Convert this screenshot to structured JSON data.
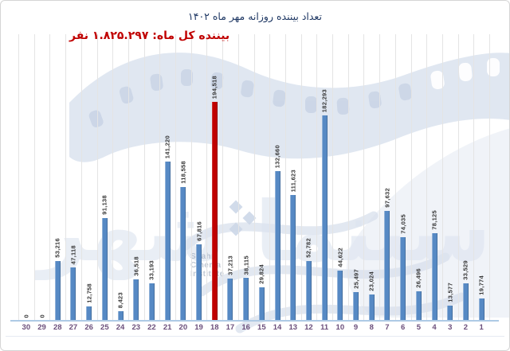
{
  "title": "تعداد بیننده روزانه مهر ماه ۱۴۰۲",
  "subtitle": "بیننده کل ماه: ۱.۸۲۵.۲۹۷ نفر",
  "total_viewers_display": "۱.۸۲۵.۲۹۷",
  "watermark": {
    "line1": "Shahr",
    "line2": "Cinema",
    "line3": "Institute",
    "calligraphy": "سینما شهر"
  },
  "colors": {
    "bar": "#5689c4",
    "highlight": "#c00000",
    "title": "#1f3864",
    "subtitle": "#c00000",
    "x_labels": "#6b4f7b",
    "gridline": "#e4e4e4",
    "axis_line": "#aecae5",
    "watermark": "#dde4f0"
  },
  "chart_data": {
    "type": "bar",
    "title": "تعداد بیننده روزانه مهر ماه ۱۴۰۲",
    "subtitle": "بیننده کل ماه: ۱.۸۲۵.۲۹۷ نفر",
    "xlabel": "",
    "ylabel": "",
    "x_axis_note": "day of month, shown right-to-left (30 at left, 1 at right)",
    "grid": "vertical",
    "legend": "none",
    "value_labels": "rotated-vertical-above-bars",
    "ylim": [
      0,
      200000
    ],
    "highlight_category": "18",
    "highlight_value": 194518,
    "total": 1825297,
    "categories": [
      "30",
      "29",
      "28",
      "27",
      "26",
      "25",
      "24",
      "23",
      "22",
      "21",
      "20",
      "19",
      "18",
      "17",
      "16",
      "15",
      "14",
      "13",
      "12",
      "11",
      "10",
      "9",
      "8",
      "7",
      "6",
      "5",
      "4",
      "3",
      "2",
      "1"
    ],
    "values": [
      0,
      0,
      53216,
      47118,
      12758,
      91138,
      8423,
      36518,
      33193,
      141220,
      118558,
      67816,
      194518,
      37213,
      38115,
      29824,
      132660,
      111623,
      52782,
      182293,
      44622,
      25497,
      23024,
      97632,
      74035,
      26496,
      78125,
      13577,
      33529,
      19774
    ]
  }
}
